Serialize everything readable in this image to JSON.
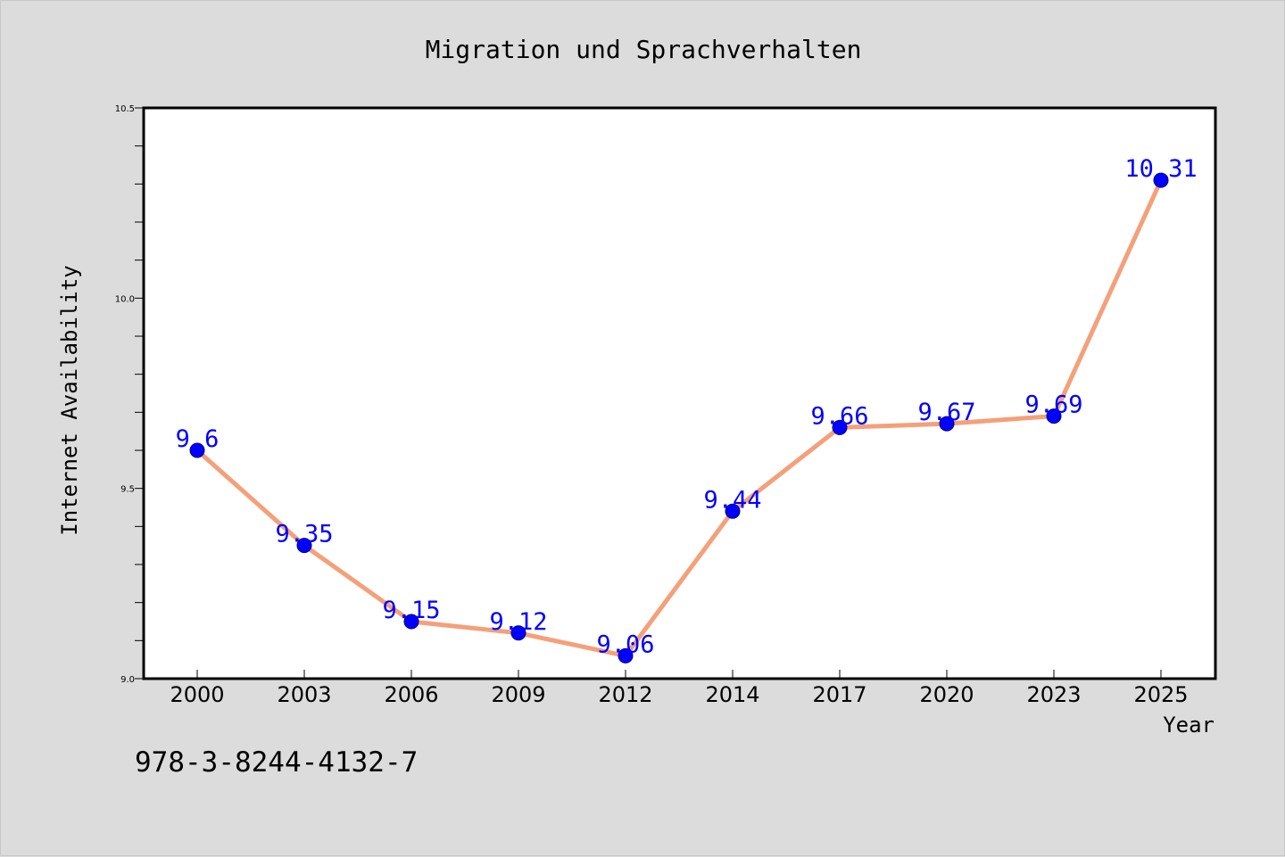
{
  "chart_data": {
    "type": "line",
    "title": "Migration und Sprachverhalten",
    "xlabel": "Year",
    "ylabel": "Internet Availability",
    "categories": [
      "2000",
      "2003",
      "2006",
      "2009",
      "2012",
      "2014",
      "2017",
      "2020",
      "2023",
      "2025"
    ],
    "series": [
      {
        "values": [
          9.6,
          9.35,
          9.15,
          9.12,
          9.06,
          9.44,
          9.66,
          9.67,
          9.69,
          10.31
        ],
        "labels": [
          "9.6",
          "9.35",
          "9.15",
          "9.12",
          "9.06",
          "9.44",
          "9.66",
          "9.67",
          "9.69",
          "10.31"
        ],
        "line_color": "#f4a07a",
        "marker_color": "#0000ff"
      }
    ],
    "ylim": [
      9.0,
      10.5
    ],
    "y_ticks": [
      9.0,
      9.5,
      10.0,
      10.5
    ],
    "y_tick_labels": [
      "9.0",
      "9.5",
      "10.0",
      "10.5"
    ],
    "grid": false,
    "legend": "none"
  },
  "footnote": "978-3-8244-4132-7",
  "colors": {
    "background": "#dcdcdc",
    "plot_background": "#ffffff",
    "line": "#f4a07a",
    "marker": "#0000ff",
    "data_label": "#0000ff"
  }
}
